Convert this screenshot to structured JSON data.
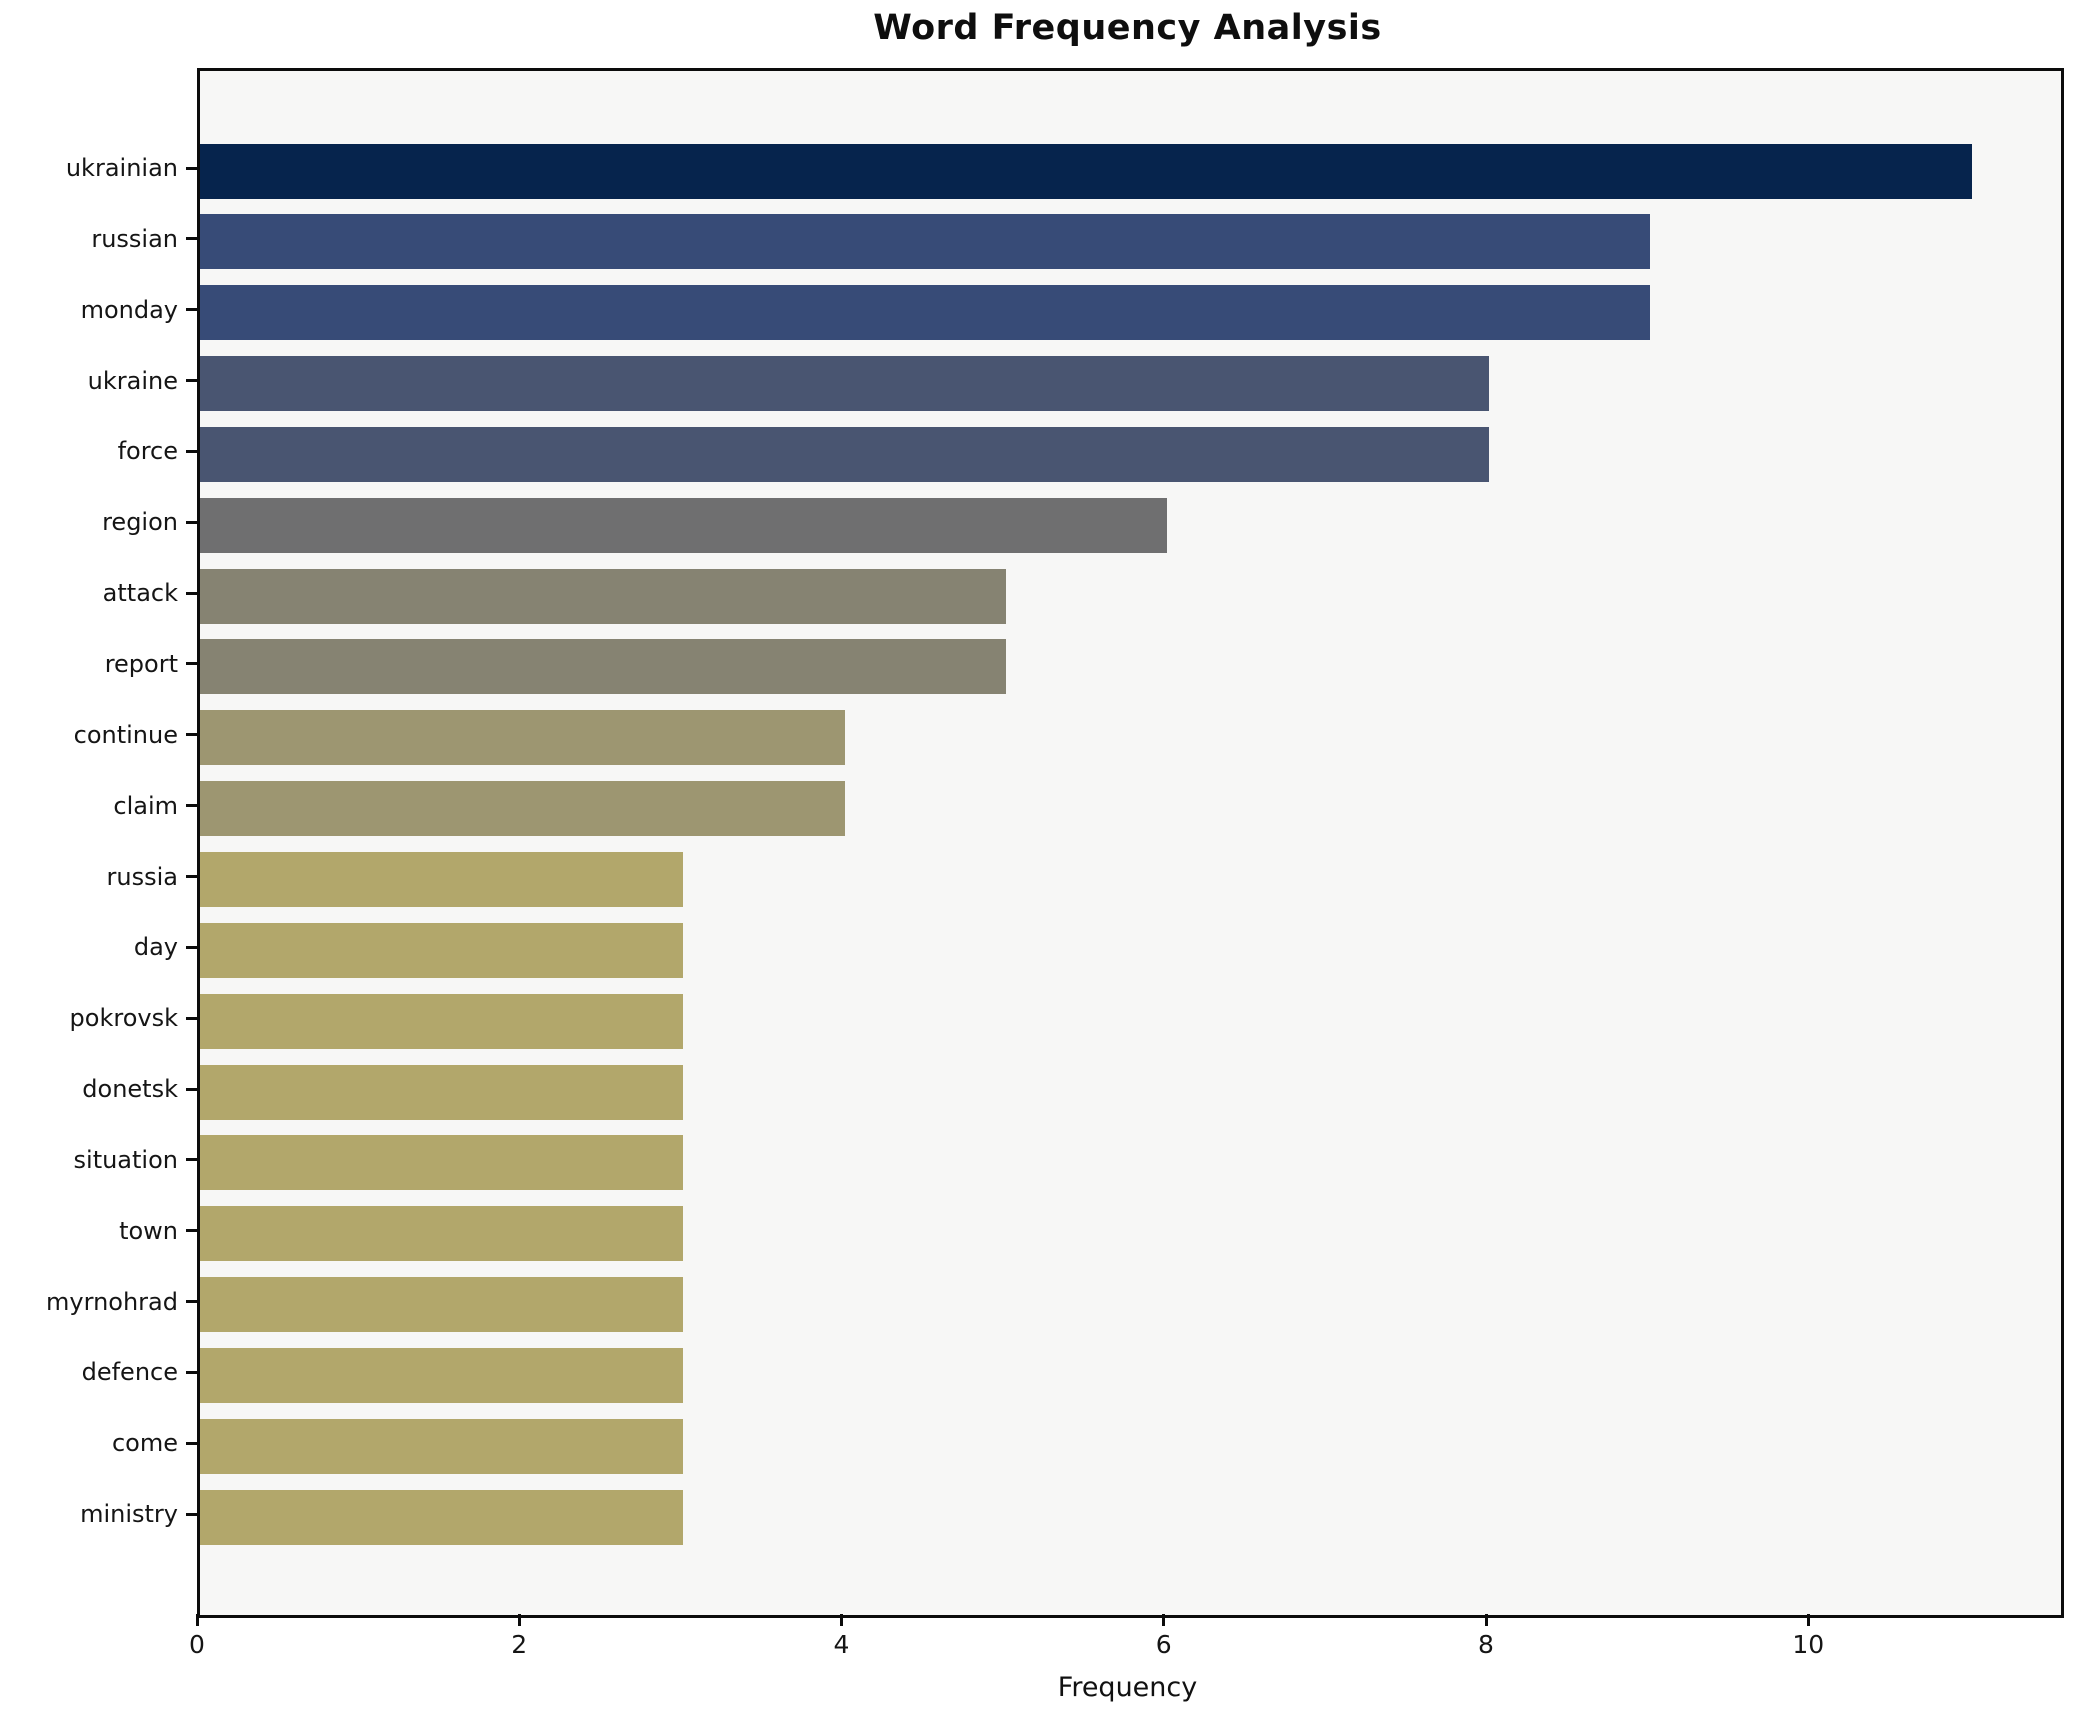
{
  "chart_data": {
    "type": "bar",
    "orientation": "horizontal",
    "title": "Word Frequency Analysis",
    "xlabel": "Frequency",
    "ylabel": "",
    "xlim": [
      0,
      11.55
    ],
    "xticks": [
      0,
      2,
      4,
      6,
      8,
      10
    ],
    "grid": false,
    "legend_position": "none",
    "categories": [
      "ukrainian",
      "russian",
      "monday",
      "ukraine",
      "force",
      "region",
      "attack",
      "report",
      "continue",
      "claim",
      "russia",
      "day",
      "pokrovsk",
      "donetsk",
      "situation",
      "town",
      "myrnohrad",
      "defence",
      "come",
      "ministry"
    ],
    "values": [
      11,
      9,
      9,
      8,
      8,
      6,
      5,
      5,
      4,
      4,
      3,
      3,
      3,
      3,
      3,
      3,
      3,
      3,
      3,
      3
    ],
    "bar_colors": [
      "#06244d",
      "#374b77",
      "#374b77",
      "#495571",
      "#495571",
      "#6f6f70",
      "#868372",
      "#868372",
      "#9d9671",
      "#9d9671",
      "#b2a76b",
      "#b2a76b",
      "#b2a76b",
      "#b2a76b",
      "#b2a76b",
      "#b2a76b",
      "#b2a76b",
      "#b2a76b",
      "#b2a76b",
      "#b2a76b"
    ],
    "colors": {
      "figure_bg": "#ffffff",
      "plot_bg": "#f7f7f6",
      "spine": "#0c0c0c",
      "tick_label": "#151515",
      "title": "#0e0e0e"
    }
  }
}
